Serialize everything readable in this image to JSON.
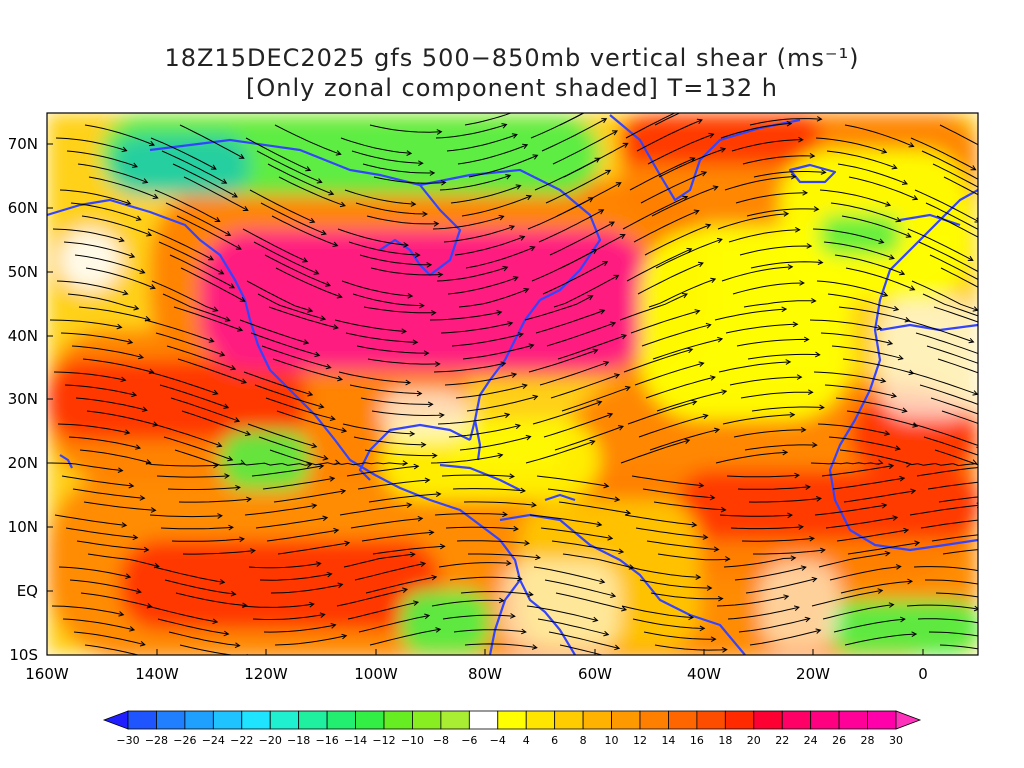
{
  "title": {
    "line1": "18Z15DEC2025 gfs 500−850mb vertical shear (ms⁻¹)",
    "line2": "[Only zonal component shaded] T=132 h"
  },
  "axes": {
    "lat_labels": [
      "70N",
      "60N",
      "50N",
      "40N",
      "30N",
      "20N",
      "10N",
      "EQ",
      "10S"
    ],
    "lon_labels": [
      "160W",
      "140W",
      "120W",
      "100W",
      "80W",
      "60W",
      "40W",
      "20W",
      "0"
    ]
  },
  "colorbar": {
    "labels": [
      "−30",
      "−28",
      "−26",
      "−24",
      "−22",
      "−20",
      "−18",
      "−16",
      "−14",
      "−12",
      "−10",
      "−8",
      "−6",
      "−4",
      "4",
      "6",
      "8",
      "10",
      "12",
      "14",
      "16",
      "18",
      "20",
      "22",
      "24",
      "26",
      "28",
      "30"
    ],
    "colors": [
      "#1f1fff",
      "#1f55ff",
      "#1f7fff",
      "#1fa0ff",
      "#1fc3ff",
      "#1fe4ff",
      "#1ff0d0",
      "#1ff0a0",
      "#22ee70",
      "#33ee44",
      "#66ee22",
      "#88ee22",
      "#aaee33",
      "#ffffff",
      "#ffff00",
      "#ffe600",
      "#ffcc00",
      "#ffb300",
      "#ff9900",
      "#ff8000",
      "#ff6600",
      "#ff4d00",
      "#ff2a00",
      "#ff0033",
      "#ff0066",
      "#ff0080",
      "#ff0099",
      "#ff00aa",
      "#ff33bb"
    ]
  },
  "map_colors": {
    "strong_positive": "#ff1a80",
    "positive_high": "#ff3300",
    "positive_mid": "#ff8000",
    "positive_low": "#ffcc00",
    "weak": "#ffff00",
    "negative": "#55ee44",
    "strong_negative": "#22ccaa",
    "coastline": "#3344ff",
    "streamline": "#000000"
  }
}
